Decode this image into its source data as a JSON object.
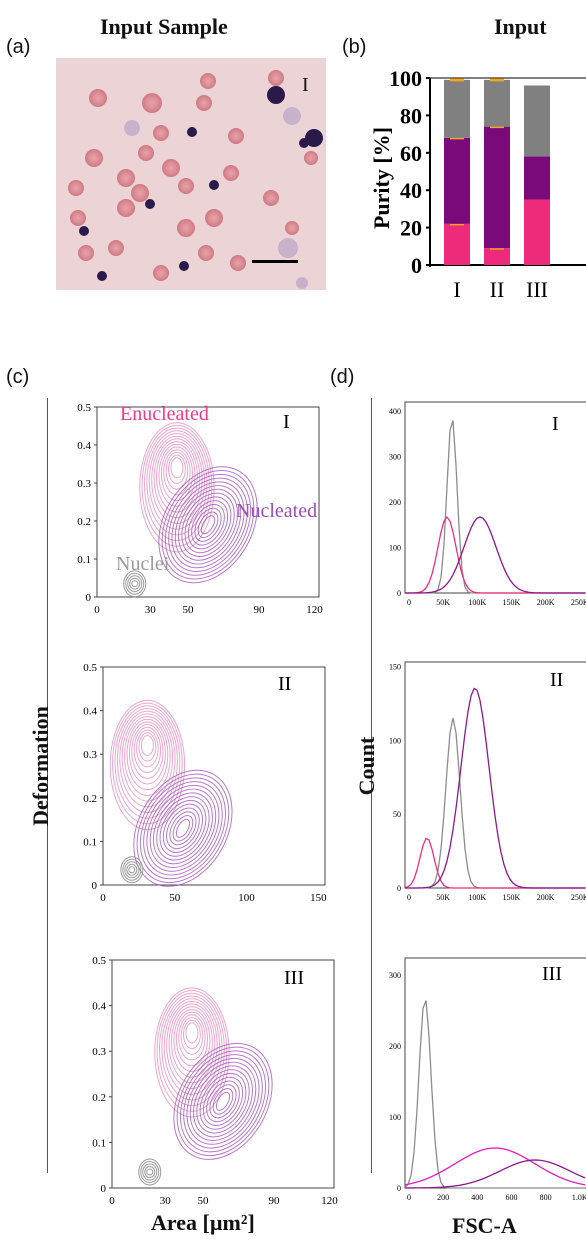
{
  "panels": {
    "a": {
      "label": "(a)",
      "title": "Input Sample",
      "roman": "I"
    },
    "b": {
      "label": "(b)",
      "title": "Input"
    },
    "c": {
      "label": "(c)"
    },
    "d": {
      "label": "(d)"
    }
  },
  "chart_data": [
    {
      "type": "bar",
      "panel": "b",
      "categories": [
        "I",
        "II",
        "III"
      ],
      "series": [
        {
          "color": "#ee2a7b",
          "values": [
            22,
            9,
            35
          ]
        },
        {
          "color": "#7a0a7a",
          "values": [
            46,
            65,
            23
          ]
        },
        {
          "color": "#808080",
          "values": [
            31,
            25,
            38
          ]
        }
      ],
      "error_color": "#f5a623",
      "ylabel": "Purity [%]",
      "yticks": [
        "0",
        "20",
        "40",
        "60",
        "80",
        "100"
      ],
      "ylim": [
        0,
        100
      ]
    },
    {
      "type": "contour",
      "panel": "c",
      "ylabel": "Deformation",
      "xlabel": "Area [µm²]",
      "subplots": [
        {
          "roman": "I",
          "xticks": [
            "0",
            "30",
            "50",
            "90",
            "120"
          ],
          "yticks": [
            "0",
            "0.1",
            "0.2",
            "0.3",
            "0.4",
            "0.5"
          ],
          "annotations": [
            {
              "text": "Enucleated",
              "color": "#ee3a88"
            },
            {
              "text": "Nucleated",
              "color": "#9b4fb5"
            },
            {
              "text": "Nuclei",
              "color": "#9a9a9a"
            }
          ]
        },
        {
          "roman": "II",
          "xticks": [
            "0",
            "50",
            "100",
            "150"
          ],
          "yticks": [
            "0",
            "0.1",
            "0.2",
            "0.3",
            "0.4",
            "0.5"
          ]
        },
        {
          "roman": "III",
          "xticks": [
            "0",
            "30",
            "50",
            "90",
            "120"
          ],
          "yticks": [
            "0",
            "0.1",
            "0.2",
            "0.3",
            "0.4",
            "0.5"
          ]
        }
      ]
    },
    {
      "type": "line",
      "panel": "d",
      "ylabel": "Count",
      "xlabel": "FSC-A",
      "subplots": [
        {
          "roman": "I",
          "xticks": [
            "0",
            "50K",
            "100K",
            "150K",
            "200K",
            "250K"
          ],
          "yticks": [
            "0",
            "100",
            "200",
            "300",
            "400"
          ]
        },
        {
          "roman": "II",
          "xticks": [
            "0",
            "50K",
            "100K",
            "150K",
            "200K",
            "250K"
          ],
          "yticks": [
            "0",
            "50",
            "100",
            "150"
          ]
        },
        {
          "roman": "III",
          "xticks": [
            "0",
            "200",
            "400",
            "600",
            "800",
            "1.0K"
          ],
          "yticks": [
            "0",
            "100",
            "200",
            "300"
          ]
        }
      ]
    }
  ]
}
